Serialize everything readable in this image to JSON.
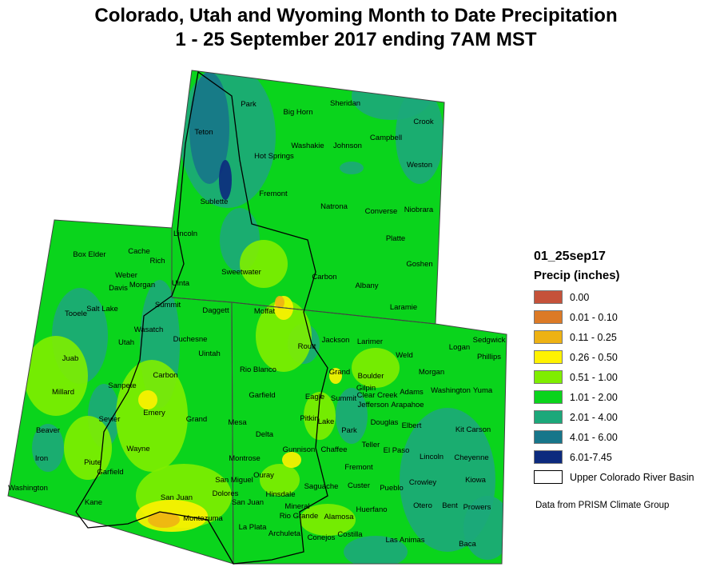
{
  "title_line1": "Colorado, Utah and Wyoming Month to Date Precipitation",
  "title_line2": "1 - 25 September 2017 ending 7AM MST",
  "legend": {
    "layer": "01_25sep17",
    "heading": "Precip (inches)",
    "classes": [
      {
        "label": "0.00",
        "color": "#c5523a"
      },
      {
        "label": "0.01 - 0.10",
        "color": "#dc7a26"
      },
      {
        "label": "0.11 - 0.25",
        "color": "#eeb213"
      },
      {
        "label": "0.26 - 0.50",
        "color": "#fff200"
      },
      {
        "label": "0.51 - 1.00",
        "color": "#7fee00"
      },
      {
        "label": "1.01 - 2.00",
        "color": "#0ad41c"
      },
      {
        "label": "2.01 - 4.00",
        "color": "#1ca87a"
      },
      {
        "label": "4.01 - 6.00",
        "color": "#17768a"
      },
      {
        "label": "6.01-7.45",
        "color": "#0c2a7e"
      },
      {
        "label": "Upper Colorado River Basin",
        "color": "#ffffff"
      }
    ]
  },
  "credit": "Data from PRISM Climate Group",
  "states": [
    "Wyoming",
    "Utah",
    "Colorado"
  ],
  "counties": {
    "wyoming": [
      "Park",
      "Big Horn",
      "Sheridan",
      "Crook",
      "Teton",
      "Washakie",
      "Johnson",
      "Campbell",
      "Hot Springs",
      "Weston",
      "Fremont",
      "Sublette",
      "Natrona",
      "Converse",
      "Niobrara",
      "Lincoln",
      "Platte",
      "Goshen",
      "Sweetwater",
      "Carbon",
      "Albany",
      "Laramie",
      "Uinta"
    ],
    "utah": [
      "Box Elder",
      "Cache",
      "Rich",
      "Weber",
      "Davis",
      "Morgan",
      "Salt Lake",
      "Summit",
      "Tooele",
      "Wasatch",
      "Utah",
      "Duchesne",
      "Daggett",
      "Uintah",
      "Juab",
      "Carbon",
      "Sanpete",
      "Millard",
      "Emery",
      "Grand",
      "Sevier",
      "Beaver",
      "Piute",
      "Wayne",
      "Iron",
      "Garfield",
      "Washington",
      "Kane",
      "San Juan"
    ],
    "colorado": [
      "Moffat",
      "Routt",
      "Jackson",
      "Larimer",
      "Logan",
      "Sedgwick",
      "Phillips",
      "Weld",
      "Morgan",
      "Grand",
      "Rio Blanco",
      "Boulder",
      "Gilpin",
      "Adams",
      "Clear Creek",
      "Washington",
      "Yuma",
      "Garfield",
      "Eagle",
      "Summit",
      "Jefferson",
      "Arapahoe",
      "Pitkin",
      "Lake",
      "Douglas",
      "Elbert",
      "Kit Carson",
      "Mesa",
      "Delta",
      "Park",
      "Teller",
      "El Paso",
      "Chaffee",
      "Gunnison",
      "Lincoln",
      "Cheyenne",
      "Montrose",
      "Fremont",
      "Crowley",
      "Kiowa",
      "Ouray",
      "San Miguel",
      "Custer",
      "Pueblo",
      "Saguache",
      "Otero",
      "Bent",
      "Prowers",
      "Dolores",
      "Hinsdale",
      "San Juan",
      "Mineral",
      "Huerfano",
      "Rio Grande",
      "Alamosa",
      "Montezuma",
      "La Plata",
      "Archuleta",
      "Costilla",
      "Conejos",
      "Las Animas",
      "Baca"
    ]
  }
}
